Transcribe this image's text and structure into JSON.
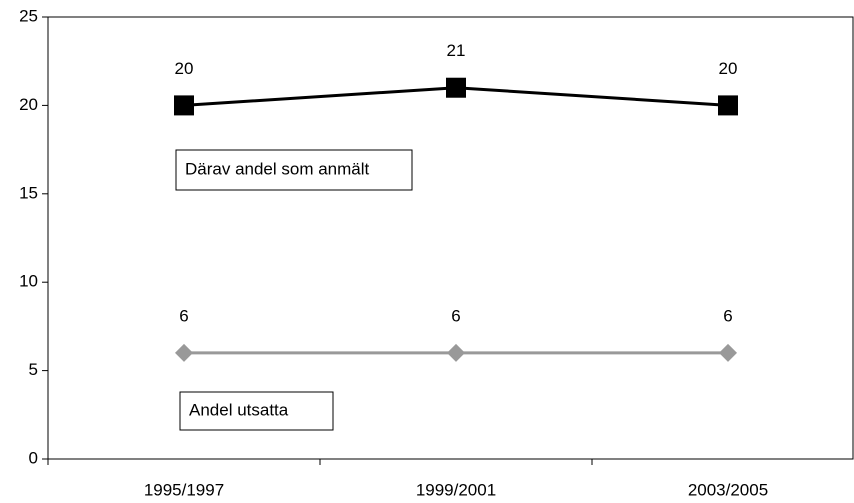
{
  "chart_data": {
    "type": "line",
    "categories": [
      "1995/1997",
      "1999/2001",
      "2003/2005"
    ],
    "series": [
      {
        "name": "Därav andel som anmält",
        "color": "#000000",
        "marker": "square",
        "values": [
          20,
          21,
          20
        ]
      },
      {
        "name": "Andel utsatta",
        "color": "#999999",
        "marker": "diamond",
        "values": [
          6,
          6,
          6
        ]
      }
    ],
    "ylim": [
      0,
      25
    ],
    "yticks": [
      0,
      5,
      10,
      15,
      20,
      25
    ],
    "grid": false
  }
}
